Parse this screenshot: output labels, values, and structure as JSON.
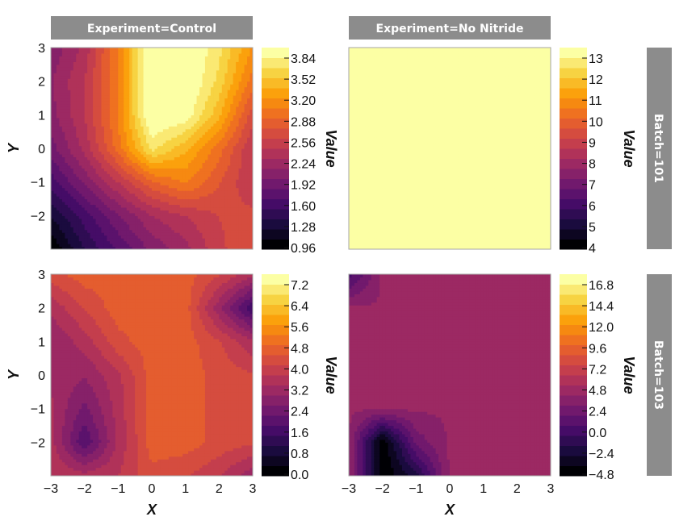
{
  "facet_rows_label": "Batch",
  "facet_cols_label": "Experiment",
  "column_strips": [
    "Experiment=Control",
    "Experiment=No Nitride"
  ],
  "row_strips": [
    "Batch=101",
    "Batch=103"
  ],
  "xlabel": "X",
  "ylabel": "Y",
  "colorbar_label": "Value",
  "x_ticks": [
    "−3",
    "−2",
    "−1",
    "0",
    "1",
    "2",
    "3"
  ],
  "y_ticks": [
    "3",
    "2",
    "1",
    "0",
    "−1",
    "−2"
  ],
  "colormap": "inferno",
  "colors": {
    "strip": "#8c8c8c",
    "frame": "#a6a6a6",
    "text": "#111111"
  },
  "chart_data": [
    {
      "type": "heatmap",
      "panel": "Experiment=Control, Batch=101",
      "x": [
        -3,
        -2,
        -1,
        0,
        1,
        2,
        3
      ],
      "y": [
        -3,
        -2,
        -1,
        0,
        1,
        2,
        3
      ],
      "z": [
        [
          0.96,
          1.4,
          1.7,
          2.0,
          2.2,
          2.5,
          2.7
        ],
        [
          1.25,
          1.6,
          1.95,
          2.25,
          2.4,
          2.55,
          2.6
        ],
        [
          1.6,
          2.0,
          2.4,
          2.8,
          3.0,
          2.7,
          2.4
        ],
        [
          1.9,
          2.3,
          2.9,
          3.6,
          3.3,
          2.9,
          2.4
        ],
        [
          2.05,
          2.4,
          3.0,
          3.9,
          3.8,
          3.3,
          2.6
        ],
        [
          2.1,
          2.4,
          3.0,
          3.9,
          3.9,
          3.5,
          2.9
        ],
        [
          2.0,
          2.3,
          3.0,
          3.9,
          3.9,
          3.6,
          3.1
        ]
      ],
      "zlim": [
        0.96,
        3.84
      ],
      "colorbar_ticks": [
        "0.96",
        "1.28",
        "1.60",
        "1.92",
        "2.24",
        "2.56",
        "2.88",
        "3.20",
        "3.52",
        "3.84"
      ],
      "xlim": [
        -3,
        3
      ],
      "ylim": [
        -3,
        3
      ]
    },
    {
      "type": "heatmap",
      "panel": "Experiment=No Nitride, Batch=101",
      "x": [
        -3,
        -2,
        -1,
        0,
        1,
        2,
        3
      ],
      "y": [
        -3,
        -2,
        -1,
        0,
        1,
        2,
        3
      ],
      "z": [
        [
          13,
          13,
          13,
          13,
          13,
          13,
          13
        ],
        [
          13,
          13,
          13,
          13,
          13,
          13,
          13
        ],
        [
          13,
          13,
          13,
          13,
          13,
          13,
          13
        ],
        [
          13,
          13,
          13,
          13,
          13,
          13,
          13
        ],
        [
          13,
          13,
          13,
          13,
          13,
          13,
          13
        ],
        [
          13,
          13,
          13,
          13,
          13,
          13,
          13
        ],
        [
          13,
          13,
          13,
          13,
          13,
          13,
          13
        ]
      ],
      "zlim": [
        4,
        13
      ],
      "colorbar_ticks": [
        "4",
        "5",
        "6",
        "7",
        "8",
        "9",
        "10",
        "11",
        "12",
        "13"
      ],
      "xlim": [
        -3,
        3
      ],
      "ylim": [
        -3,
        3
      ]
    },
    {
      "type": "heatmap",
      "panel": "Experiment=Control, Batch=103",
      "x": [
        -3,
        -2,
        -1,
        0,
        1,
        2,
        3
      ],
      "y": [
        -3,
        -2,
        -1,
        0,
        1,
        2,
        3
      ],
      "z": [
        [
          3.6,
          3.4,
          3.6,
          4.2,
          4.0,
          3.6,
          3.0
        ],
        [
          3.4,
          1.8,
          3.3,
          4.5,
          4.5,
          4.2,
          4.0
        ],
        [
          3.3,
          2.4,
          3.4,
          4.5,
          4.5,
          4.2,
          4.0
        ],
        [
          3.2,
          2.9,
          3.5,
          4.5,
          4.5,
          4.2,
          4.0
        ],
        [
          2.9,
          3.4,
          4.2,
          4.5,
          4.5,
          4.0,
          3.3
        ],
        [
          3.3,
          4.0,
          4.5,
          4.5,
          4.5,
          3.0,
          1.5
        ],
        [
          4.2,
          4.5,
          4.5,
          4.5,
          4.5,
          4.0,
          3.3
        ]
      ],
      "zlim": [
        0.0,
        7.2
      ],
      "colorbar_ticks": [
        "0.0",
        "0.8",
        "1.6",
        "2.4",
        "3.2",
        "4.0",
        "4.8",
        "5.6",
        "6.4",
        "7.2"
      ],
      "xlim": [
        -3,
        3
      ],
      "ylim": [
        -3,
        3
      ]
    },
    {
      "type": "heatmap",
      "panel": "Experiment=No Nitride, Batch=103",
      "x": [
        -3,
        -2,
        -1,
        0,
        1,
        2,
        3
      ],
      "y": [
        -3,
        -2,
        -1,
        0,
        1,
        2,
        3
      ],
      "z": [
        [
          4.0,
          -4.8,
          -2.0,
          4.0,
          4.0,
          4.0,
          4.0
        ],
        [
          4.0,
          -4.8,
          2.0,
          4.0,
          4.0,
          4.0,
          4.0
        ],
        [
          4.0,
          4.0,
          4.0,
          4.0,
          4.0,
          4.0,
          4.0
        ],
        [
          4.0,
          4.0,
          4.0,
          4.0,
          4.0,
          4.0,
          4.0
        ],
        [
          4.0,
          4.0,
          4.0,
          4.0,
          4.0,
          4.0,
          4.0
        ],
        [
          4.0,
          4.0,
          4.0,
          4.0,
          4.0,
          4.0,
          4.0
        ],
        [
          0.0,
          4.0,
          4.0,
          4.0,
          4.0,
          4.0,
          4.0
        ]
      ],
      "zlim": [
        -4.8,
        16.8
      ],
      "colorbar_ticks": [
        "−4.8",
        "−2.4",
        "0.0",
        "2.4",
        "4.8",
        "7.2",
        "9.6",
        "12.0",
        "14.4",
        "16.8"
      ],
      "xlim": [
        -3,
        3
      ],
      "ylim": [
        -3,
        3
      ]
    }
  ]
}
